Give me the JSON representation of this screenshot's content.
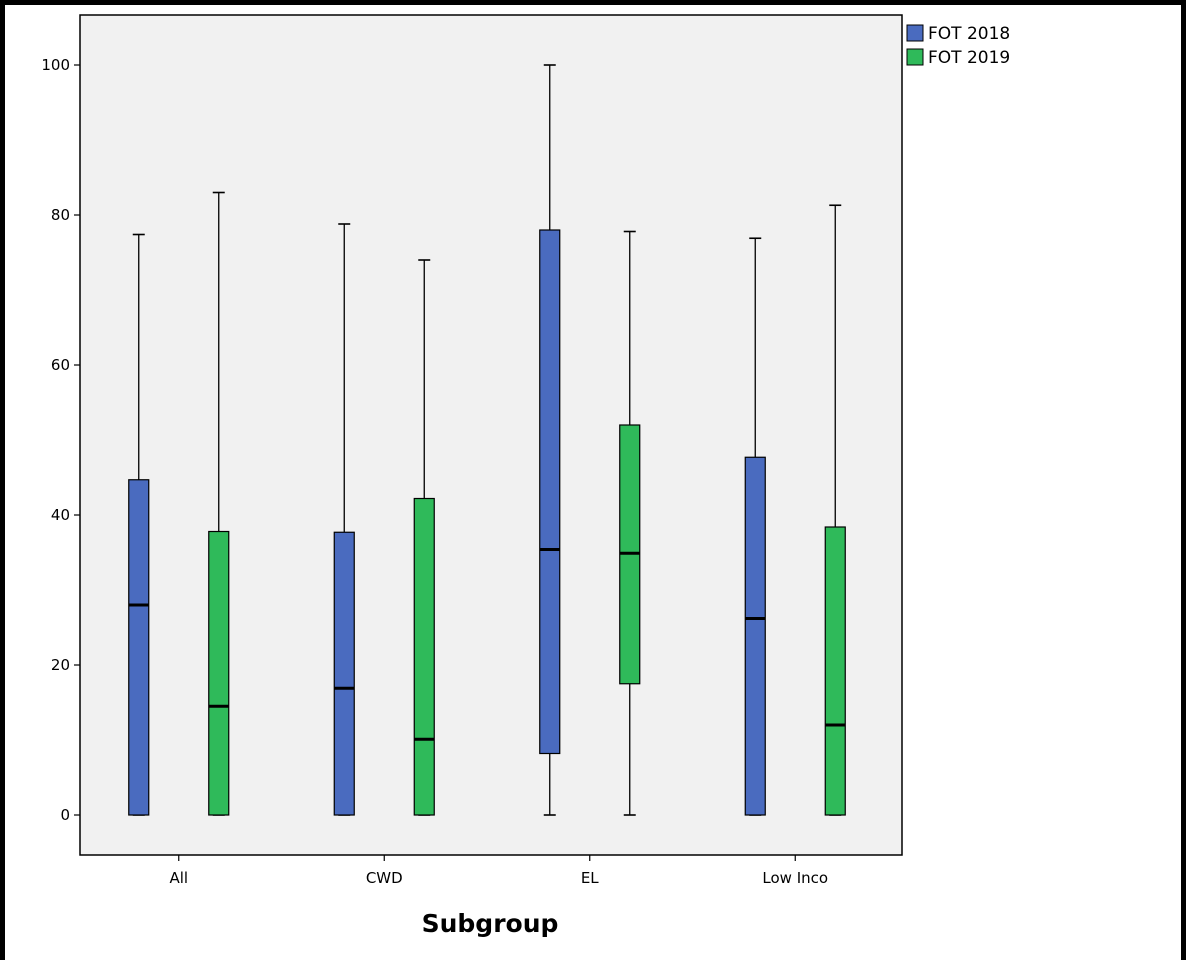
{
  "chart_data": {
    "type": "box",
    "title": "",
    "xlabel": "Subgroup",
    "ylabel": "",
    "ylim": [
      -5,
      106
    ],
    "yticks": [
      0,
      20,
      40,
      60,
      80,
      100
    ],
    "ytick_labels": [
      "0",
      "20",
      "40",
      "60",
      "80",
      "100"
    ],
    "grid": false,
    "legend_position": "top-right outside",
    "categories": [
      "All",
      "CWD",
      "EL",
      "Low Inco"
    ],
    "series": [
      {
        "name": "FOT 2018",
        "color": "#4a6bbf",
        "boxes": [
          {
            "min": 0,
            "q1": 0,
            "median": 28,
            "q3": 44.7,
            "max": 77.4
          },
          {
            "min": 0,
            "q1": 0,
            "median": 16.9,
            "q3": 37.7,
            "max": 78.8
          },
          {
            "min": 0,
            "q1": 8.2,
            "median": 35.4,
            "q3": 78,
            "max": 100
          },
          {
            "min": 0,
            "q1": 0,
            "median": 26.2,
            "q3": 47.7,
            "max": 76.9
          }
        ]
      },
      {
        "name": "FOT 2019",
        "color": "#2fba5a",
        "boxes": [
          {
            "min": 0,
            "q1": 0,
            "median": 14.5,
            "q3": 37.8,
            "max": 83
          },
          {
            "min": 0,
            "q1": 0,
            "median": 10.1,
            "q3": 42.2,
            "max": 74
          },
          {
            "min": 0,
            "q1": 17.5,
            "median": 34.9,
            "q3": 52,
            "max": 77.8
          },
          {
            "min": 0,
            "q1": 0,
            "median": 12,
            "q3": 38.4,
            "max": 81.3
          }
        ]
      }
    ]
  },
  "colors": {
    "plot_background": "#f1f1f1",
    "frame": "#000000"
  }
}
